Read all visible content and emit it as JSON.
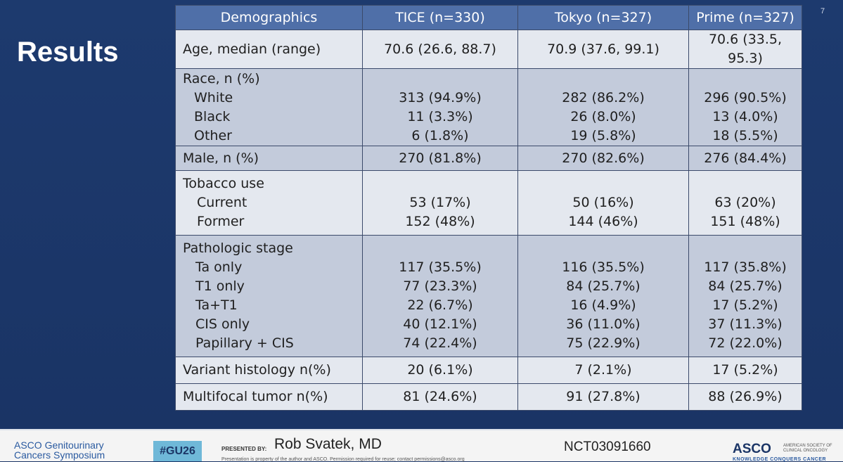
{
  "slide": {
    "title": "Results",
    "number": "7"
  },
  "table": {
    "headers": [
      "Demographics",
      "TICE  (n=330)",
      "Tokyo  (n=327)",
      "Prime  (n=327)"
    ],
    "rows": [
      {
        "labels": [
          "Age, median (range)"
        ],
        "tice": [
          "70.6 (26.6, 88.7)"
        ],
        "tokyo": [
          "70.9 (37.6, 99.1)"
        ],
        "prime": [
          "70.6 (33.5, 95.3)"
        ]
      },
      {
        "labels": [
          "Race, n (%)",
          "White",
          "Black",
          "Other"
        ],
        "tice": [
          "313 (94.9%)",
          "11 (3.3%)",
          "6 (1.8%)"
        ],
        "tokyo": [
          "282 (86.2%)",
          "26 (8.0%)",
          "19 (5.8%)"
        ],
        "prime": [
          "296 (90.5%)",
          "13 (4.0%)",
          "18 (5.5%)"
        ]
      },
      {
        "labels": [
          "Male, n (%)"
        ],
        "tice": [
          "270 (81.8%)"
        ],
        "tokyo": [
          "270 (82.6%)"
        ],
        "prime": [
          "276 (84.4%)"
        ]
      },
      {
        "labels": [
          "Tobacco use",
          "Current",
          "Former"
        ],
        "tice": [
          "53 (17%)",
          "152 (48%)"
        ],
        "tokyo": [
          "50 (16%)",
          "144 (46%)"
        ],
        "prime": [
          "63 (20%)",
          "151 (48%)"
        ]
      },
      {
        "labels": [
          "Pathologic stage",
          "Ta only",
          "T1 only",
          "Ta+T1",
          "CIS only",
          "Papillary + CIS"
        ],
        "tice": [
          "117 (35.5%)",
          "77 (23.3%)",
          "22 (6.7%)",
          "40 (12.1%)",
          "74 (22.4%)"
        ],
        "tokyo": [
          "116 (35.5%)",
          "84 (25.7%)",
          "16 (4.9%)",
          "36 (11.0%)",
          "75 (22.9%)"
        ],
        "prime": [
          "117 (35.8%)",
          "84 (25.7%)",
          "17 (5.2%)",
          "37 (11.3%)",
          "72 (22.0%)"
        ]
      },
      {
        "labels": [
          "Variant histology n(%)"
        ],
        "tice": [
          "20 (6.1%)"
        ],
        "tokyo": [
          "7 (2.1%)"
        ],
        "prime": [
          "17 (5.2%)"
        ]
      },
      {
        "labels": [
          "Multifocal tumor n(%)"
        ],
        "tice": [
          "81 (24.6%)"
        ],
        "tokyo": [
          "91 (27.8%)"
        ],
        "prime": [
          "88 (26.9%)"
        ]
      }
    ]
  },
  "footer": {
    "org_line1": "ASCO Genitourinary",
    "org_line2": "Cancers Symposium",
    "hashtag": "#GU26",
    "presented_by": "PRESENTED BY:",
    "presenter": "Rob Svatek, MD",
    "legal": "Presentation is property of the author and ASCO. Permission required for reuse; contact permissions@asco.org",
    "trial_id": "NCT03091660",
    "asco_logo": "ASCO",
    "asco_full": "AMERICAN SOCIETY OF CLINICAL ONCOLOGY",
    "tagline": "KNOWLEDGE CONQUERS CANCER"
  },
  "colors": {
    "background": "#1b3566",
    "header_fill": "#4f6fa8",
    "row_light": "#e4e8ef",
    "row_dark": "#c3cbdb"
  }
}
